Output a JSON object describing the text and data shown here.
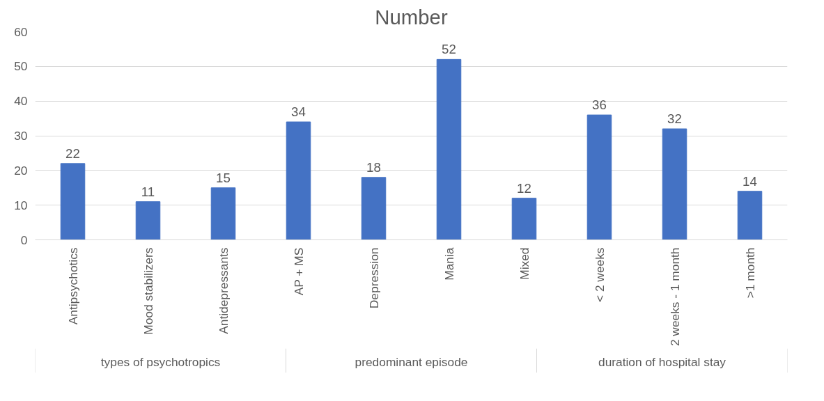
{
  "chart_data": {
    "type": "bar",
    "title": "Number",
    "categories": [
      "Antipsychotics",
      "Mood stabilizers",
      "Antidepressants",
      "AP + MS",
      "Depression",
      "Mania",
      "Mixed",
      "< 2 weeks",
      "2 weeks - 1 month",
      ">1 month"
    ],
    "values": [
      22,
      11,
      15,
      34,
      18,
      52,
      12,
      36,
      32,
      14
    ],
    "color": "#4472c4",
    "ylim": [
      0,
      60
    ],
    "yticks": [
      0,
      10,
      20,
      30,
      40,
      50,
      60
    ],
    "grid": "y",
    "data_labels": true,
    "annotations": [
      "types of psychotropics",
      "predominant episode",
      "duration of hospital stay"
    ]
  }
}
